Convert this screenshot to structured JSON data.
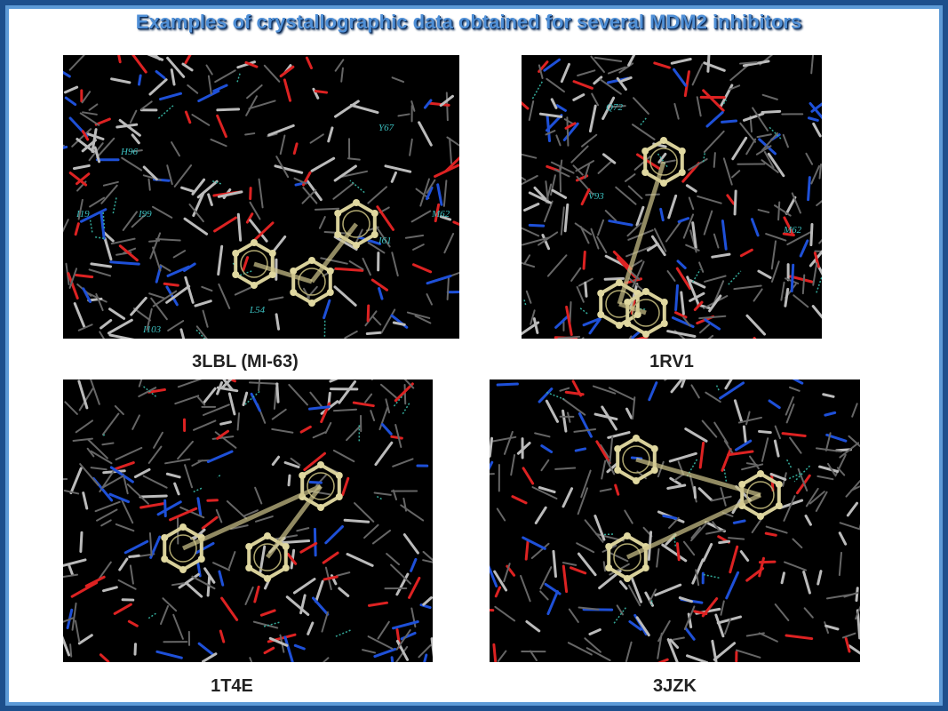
{
  "header": {
    "title": "Examples of crystallographic data obtained for several MDM2 inhibitors"
  },
  "panels": [
    {
      "caption": "3LBL (MI-63)",
      "labels": [
        "H96",
        "Y67",
        "I19",
        "I99",
        "M62",
        "I61",
        "L54",
        "I103"
      ]
    },
    {
      "caption": "1RV1",
      "labels": [
        "Q72",
        "V93",
        "M62"
      ]
    },
    {
      "caption": "1T4E",
      "labels": []
    },
    {
      "caption": "3JZK",
      "labels": []
    }
  ]
}
